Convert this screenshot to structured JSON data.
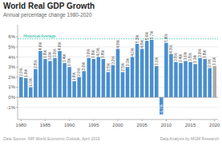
{
  "chart_data": {
    "type": "bar",
    "title": "World Real GDP Growth",
    "subtitle": "Annual percentage change 1980-2020",
    "categories": [
      1980,
      null,
      null,
      null,
      null,
      1985,
      null,
      null,
      null,
      null,
      1990,
      null,
      null,
      null,
      null,
      1995,
      null,
      null,
      null,
      null,
      2000,
      null,
      null,
      null,
      null,
      2005,
      null,
      null,
      null,
      null,
      2010,
      null,
      null,
      null,
      null,
      2015,
      null,
      null,
      null,
      null,
      2020
    ],
    "values": [
      2.0,
      1.9,
      1.0,
      2.8,
      4.6,
      3.8,
      3.6,
      3.9,
      4.6,
      3.4,
      3.0,
      1.6,
      2.0,
      2.6,
      3.9,
      3.8,
      4.0,
      3.8,
      2.5,
      3.2,
      4.8,
      2.5,
      3.0,
      4.0,
      5.3,
      4.8,
      5.6,
      5.7,
      3.1,
      -1.7,
      5.4,
      4.3,
      3.5,
      3.4,
      3.6,
      3.5,
      3.3,
      3.9,
      3.8,
      2.9,
      3.1
    ],
    "value_labels": [
      "2.0%",
      "1.9%",
      "1.0%",
      "2.8%",
      "4.6%",
      "3.8%",
      "3.6%",
      "3.9%",
      "4.6%",
      "3.4%",
      "3.0%",
      "1.6%",
      "2.0%",
      "2.6%",
      "3.9%",
      "3.8%",
      "4.0%",
      "3.8%",
      "2.5%",
      "3.2%",
      "4.8%",
      "2.5%",
      "3.0%",
      "4.0%",
      "5.3%",
      "4.8%",
      "5.6%",
      "5.7%",
      "3.1%",
      "-1.7%",
      "5.4%",
      "4.3%",
      "3.5%",
      "3.4%",
      "3.6%",
      "3.5%",
      "3.3%",
      "3.9%",
      "3.8%",
      "2.9%",
      "3.1%"
    ],
    "data_labels": true,
    "colors": [
      "#4a8fce",
      "#4a8fce",
      "#4a8fce",
      "#4a8fce",
      "#4a8fce",
      "#4a8fce",
      "#4a8fce",
      "#4a8fce",
      "#4a8fce",
      "#4a8fce",
      "#4a8fce",
      "#4a8fce",
      "#4a8fce",
      "#4a8fce",
      "#4a8fce",
      "#4a8fce",
      "#4a8fce",
      "#4a8fce",
      "#4a8fce",
      "#4a8fce",
      "#4a8fce",
      "#4a8fce",
      "#4a8fce",
      "#4a8fce",
      "#4a8fce",
      "#4a8fce",
      "#4a8fce",
      "#4a8fce",
      "#4a8fce",
      "#4a8fce",
      "#4a8fce",
      "#4a8fce",
      "#4a8fce",
      "#4a8fce",
      "#4a8fce",
      "#4a8fce",
      "#4a8fce",
      "#4a8fce",
      "#4a8fce",
      "#4a8fce",
      "#aaaaaa"
    ],
    "ylim": [
      -2.2,
      7.2
    ],
    "yticks": [
      {
        "value": -1,
        "label": "-1%"
      },
      {
        "value": 0,
        "label": "0%"
      },
      {
        "value": 1,
        "label": "1%"
      },
      {
        "value": 2,
        "label": "2%"
      },
      {
        "value": 3,
        "label": "3%"
      },
      {
        "value": 4,
        "label": "4%"
      },
      {
        "value": 5,
        "label": "5%"
      },
      {
        "value": 6,
        "label": "6%"
      }
    ],
    "grid": true,
    "annotations": [
      {
        "text": "Historical Average",
        "value": 5.8,
        "color": "#20c0a0"
      }
    ],
    "footnotes": [
      "Data Source: IMF World Economic Outlook, April 2019",
      "Data Analysis by MGM Research"
    ]
  }
}
